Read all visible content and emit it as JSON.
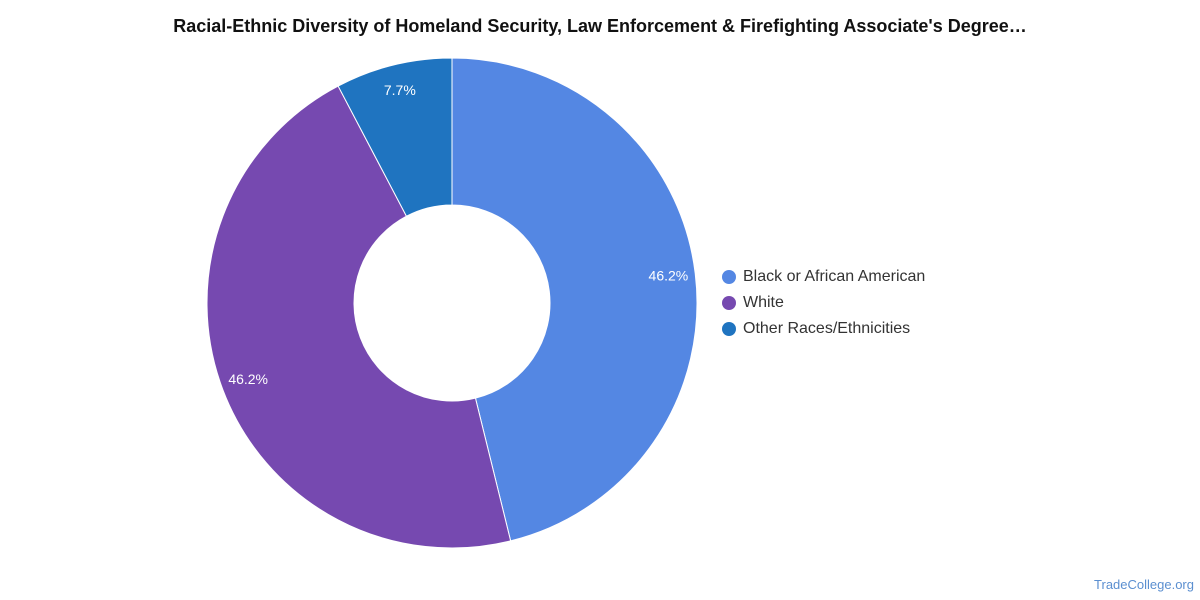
{
  "chart_data": {
    "type": "pie",
    "title": "Racial-Ethnic Diversity of Homeland Security, Law Enforcement & Firefighting Associate's Degree…",
    "donut": true,
    "legend_position": "right",
    "slices": [
      {
        "label": "Black or African American",
        "value": 46.2,
        "value_label": "46.2%",
        "color": "#5487e3"
      },
      {
        "label": "White",
        "value": 46.2,
        "value_label": "46.2%",
        "color": "#7649b0"
      },
      {
        "label": "Other Races/Ethnicities",
        "value": 7.7,
        "value_label": "7.7%",
        "color": "#1f74c0"
      }
    ]
  },
  "watermark": "TradeCollege.org"
}
